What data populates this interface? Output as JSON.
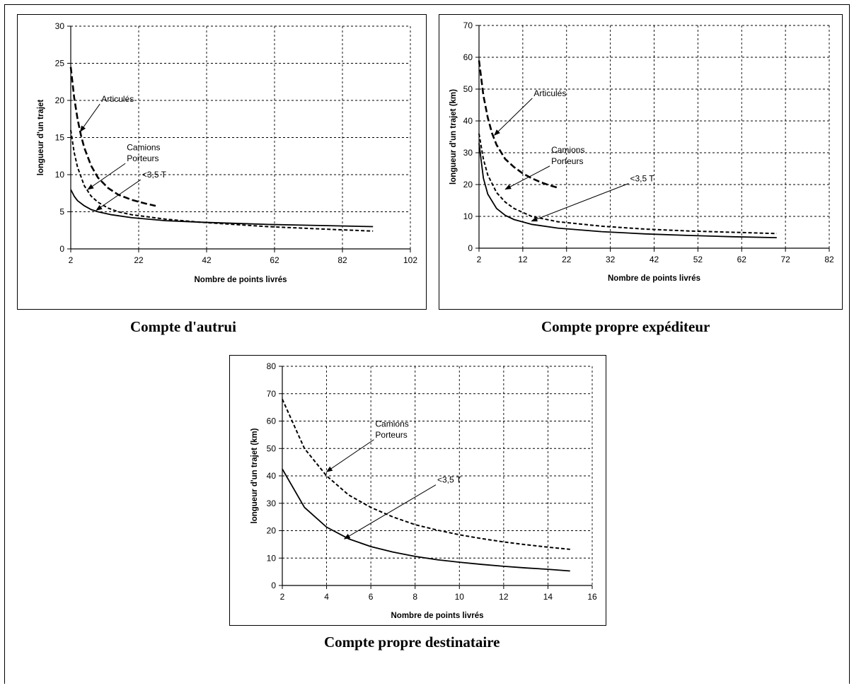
{
  "captions": {
    "c1": "Compte d'autrui",
    "c2": "Compte propre expéditeur",
    "c3": "Compte propre destinataire"
  },
  "chart_data": [
    {
      "type": "line",
      "title": "",
      "xlabel": "Nombre de points livrés",
      "ylabel": "longueur d'un trajet",
      "xlim": [
        2,
        102
      ],
      "ylim": [
        0,
        30
      ],
      "xticks": [
        2,
        22,
        42,
        62,
        82,
        102
      ],
      "yticks": [
        0,
        5,
        10,
        15,
        20,
        25,
        30
      ],
      "grid": true,
      "series": [
        {
          "name": "Articulés",
          "style": "dash-thick",
          "x": [
            2,
            3,
            4,
            5,
            6,
            8,
            10,
            13,
            16,
            20,
            24,
            27
          ],
          "y": [
            24.5,
            20.4,
            17.5,
            15.3,
            13.6,
            11.2,
            9.6,
            8.2,
            7.3,
            6.6,
            6.1,
            5.8
          ]
        },
        {
          "name": "Camions Porteurs",
          "style": "dash",
          "x": [
            2,
            3,
            4,
            6,
            8,
            10,
            13,
            16,
            20,
            30,
            40,
            50,
            60,
            70,
            80,
            91
          ],
          "y": [
            16.0,
            13.0,
            11.0,
            8.5,
            7.1,
            6.3,
            5.5,
            5.0,
            4.6,
            4.0,
            3.6,
            3.3,
            3.0,
            2.8,
            2.6,
            2.4
          ]
        },
        {
          "name": "<3,5 T",
          "style": "solid",
          "x": [
            2,
            3,
            4,
            6,
            8,
            10,
            14,
            20,
            30,
            40,
            50,
            60,
            70,
            80,
            91
          ],
          "y": [
            8.0,
            7.1,
            6.5,
            5.8,
            5.3,
            5.0,
            4.6,
            4.2,
            3.8,
            3.6,
            3.45,
            3.3,
            3.2,
            3.1,
            3.0
          ]
        }
      ],
      "annotations": [
        {
          "text": "Articulés",
          "label_at": [
            11,
            19.8
          ],
          "arrow_to": [
            4.8,
            15.8
          ]
        },
        {
          "text": "Camions",
          "label_at": [
            18.5,
            13.3
          ],
          "arrow_to": null
        },
        {
          "text": "Porteurs",
          "label_at": [
            18.5,
            11.8
          ],
          "arrow_to": [
            7,
            8.0
          ]
        },
        {
          "text": "<3,5 T",
          "label_at": [
            23,
            9.6
          ],
          "arrow_to": [
            9.5,
            5.2
          ]
        }
      ]
    },
    {
      "type": "line",
      "title": "",
      "xlabel": "Nombre de points livrés",
      "ylabel": "longueur d'un trajet (km)",
      "xlim": [
        2,
        82
      ],
      "ylim": [
        0,
        70
      ],
      "xticks": [
        2,
        12,
        22,
        32,
        42,
        52,
        62,
        72,
        82
      ],
      "yticks": [
        0,
        10,
        20,
        30,
        40,
        50,
        60,
        70
      ],
      "grid": true,
      "series": [
        {
          "name": "Articulés",
          "style": "dash-thick",
          "x": [
            2,
            3,
            4,
            5,
            6,
            8,
            10,
            12,
            14,
            16,
            18,
            20
          ],
          "y": [
            59.0,
            48.0,
            41.0,
            36.0,
            32.5,
            28.0,
            25.5,
            23.5,
            22.0,
            20.8,
            19.8,
            19.0
          ]
        },
        {
          "name": "Camions Porteurs",
          "style": "dash",
          "x": [
            2,
            3,
            4,
            6,
            8,
            10,
            14,
            20,
            30,
            40,
            50,
            60,
            70
          ],
          "y": [
            36.0,
            28.0,
            23.0,
            17.5,
            14.5,
            12.5,
            10.0,
            8.3,
            6.9,
            6.0,
            5.4,
            5.0,
            4.6
          ]
        },
        {
          "name": "<3,5 T",
          "style": "solid",
          "x": [
            2,
            3,
            4,
            6,
            8,
            10,
            14,
            20,
            30,
            40,
            50,
            60,
            70
          ],
          "y": [
            33.0,
            22.0,
            17.0,
            12.5,
            10.3,
            9.0,
            7.5,
            6.3,
            5.2,
            4.5,
            4.0,
            3.6,
            3.3
          ]
        }
      ],
      "annotations": [
        {
          "text": "Articulés",
          "label_at": [
            14.5,
            47.8
          ],
          "arrow_to": [
            5.5,
            35.5
          ]
        },
        {
          "text": "Camions",
          "label_at": [
            18.5,
            30.0
          ],
          "arrow_to": null
        },
        {
          "text": "Porteurs",
          "label_at": [
            18.5,
            26.5
          ],
          "arrow_to": [
            8,
            18.5
          ]
        },
        {
          "text": "<3,5 T",
          "label_at": [
            36.5,
            21.0
          ],
          "arrow_to": [
            14,
            8.5
          ]
        }
      ]
    },
    {
      "type": "line",
      "title": "",
      "xlabel": "Nombre de points livrés",
      "ylabel": "longueur d'un trajet (km)",
      "xlim": [
        2,
        16
      ],
      "ylim": [
        0,
        80
      ],
      "xticks": [
        2,
        4,
        6,
        8,
        10,
        12,
        14,
        16
      ],
      "yticks": [
        0,
        10,
        20,
        30,
        40,
        50,
        60,
        70,
        80
      ],
      "grid": true,
      "series": [
        {
          "name": "Camions Porteurs",
          "style": "dash",
          "x": [
            2,
            3,
            4,
            5,
            6,
            7,
            8,
            9,
            10,
            11,
            12,
            13,
            14,
            15
          ],
          "y": [
            68.0,
            50.0,
            40.0,
            33.0,
            28.5,
            25.0,
            22.2,
            20.2,
            18.5,
            17.1,
            15.9,
            14.9,
            14.0,
            13.2
          ]
        },
        {
          "name": "<3,5 T",
          "style": "solid",
          "x": [
            2,
            3,
            4,
            5,
            6,
            7,
            8,
            9,
            10,
            11,
            12,
            13,
            14,
            15
          ],
          "y": [
            42.5,
            28.5,
            21.3,
            17.0,
            14.2,
            12.2,
            10.6,
            9.4,
            8.5,
            7.7,
            7.0,
            6.4,
            5.9,
            5.3
          ]
        }
      ],
      "annotations": [
        {
          "text": "Camions",
          "label_at": [
            6.2,
            58.0
          ],
          "arrow_to": null
        },
        {
          "text": "Porteurs",
          "label_at": [
            6.2,
            54.0
          ],
          "arrow_to": [
            4,
            41.5
          ]
        },
        {
          "text": "<3,5 T",
          "label_at": [
            9.0,
            37.5
          ],
          "arrow_to": [
            4.8,
            17.0
          ]
        }
      ]
    }
  ]
}
